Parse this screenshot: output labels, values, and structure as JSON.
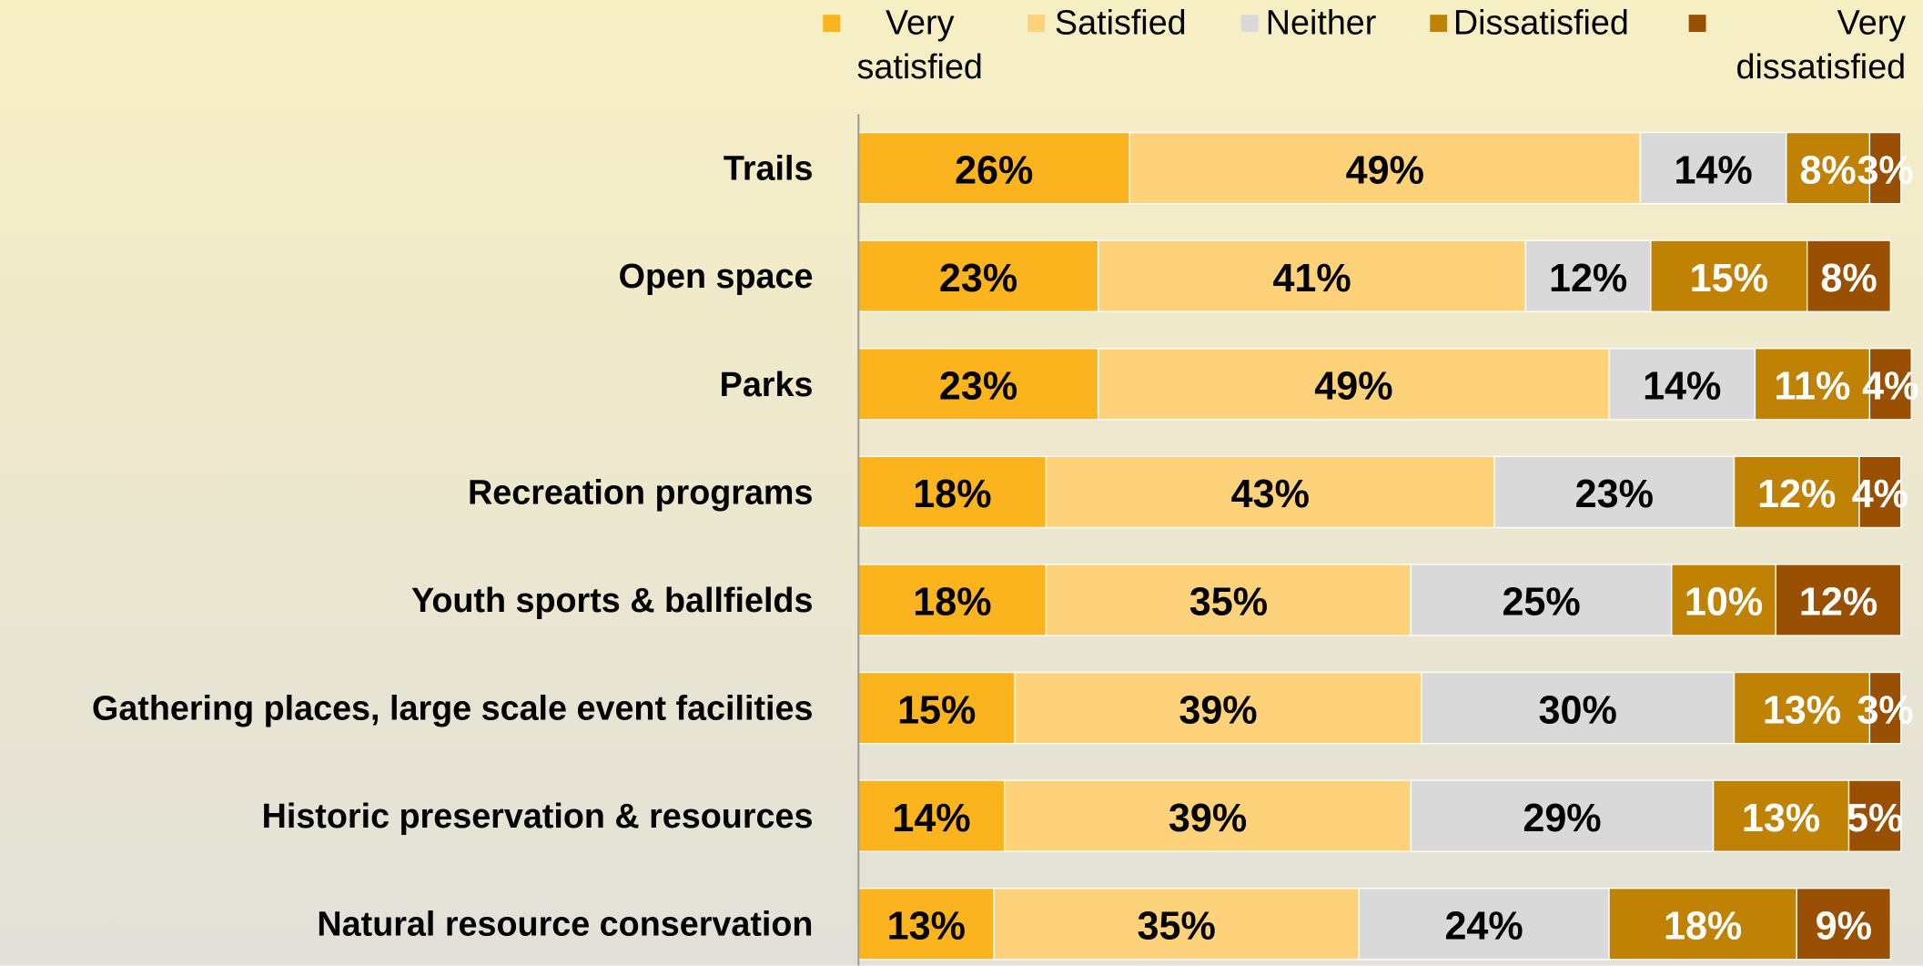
{
  "chart_data": {
    "type": "stacked-bar-horizontal",
    "categories": [
      "Trails",
      "Open space",
      "Parks",
      "Recreation programs",
      "Youth sports & ballfields",
      "Gathering places, large scale event facilities",
      "Historic preservation & resources",
      "Natural resource conservation"
    ],
    "xlim": [
      0,
      100
    ],
    "series": [
      {
        "name": "Very satisfied",
        "color": "#fbb41e",
        "values": [
          26,
          23,
          23,
          18,
          18,
          15,
          14,
          13
        ],
        "value_labels": [
          "26%",
          "23%",
          "23%",
          "18%",
          "18%",
          "15%",
          "14%",
          "13%"
        ]
      },
      {
        "name": "Satisfied",
        "color": "#fdd27a",
        "values": [
          49,
          41,
          49,
          43,
          35,
          39,
          39,
          35
        ],
        "value_labels": [
          "49%",
          "41%",
          "49%",
          "43%",
          "35%",
          "39%",
          "39%",
          "35%"
        ]
      },
      {
        "name": "Neither",
        "color": "#d9d9d9",
        "values": [
          14,
          12,
          14,
          23,
          25,
          30,
          29,
          24
        ],
        "value_labels": [
          "14%",
          "12%",
          "14%",
          "23%",
          "25%",
          "30%",
          "29%",
          "24%"
        ]
      },
      {
        "name": "Dissatisfied",
        "color": "#bf8205",
        "values": [
          8,
          15,
          11,
          12,
          10,
          13,
          13,
          18
        ],
        "value_labels": [
          "8%",
          "15%",
          "11%",
          "12%",
          "10%",
          "13%",
          "13%",
          "18%"
        ]
      },
      {
        "name": "Very dissatisfied",
        "color": "#995003",
        "values": [
          3,
          8,
          4,
          4,
          12,
          3,
          5,
          9
        ],
        "value_labels": [
          "3%",
          "8%",
          "4%",
          "4%",
          "12%",
          "3%",
          "5%",
          "9%"
        ]
      }
    ]
  }
}
